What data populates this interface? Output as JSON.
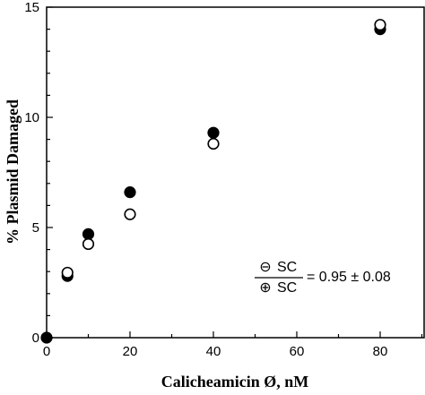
{
  "chart_data": {
    "type": "scatter",
    "xlabel": "Calicheamicin Ø, nM",
    "ylabel": "% Plasmid Damaged",
    "xlim": [
      0,
      90
    ],
    "ylim": [
      0,
      15
    ],
    "x_ticks": [
      0,
      20,
      40,
      60,
      80
    ],
    "x_tick_labels": [
      "0",
      "20",
      "40",
      "60",
      "80"
    ],
    "y_ticks": [
      0,
      5,
      10,
      15
    ],
    "y_tick_labels": [
      "0",
      "5",
      "10",
      "15"
    ],
    "grid": false,
    "series": [
      {
        "marker": "filled-circle",
        "color": "#000000",
        "x": [
          0,
          5,
          10,
          20,
          40,
          80
        ],
        "y": [
          0,
          2.8,
          4.7,
          6.6,
          9.3,
          14.0
        ]
      },
      {
        "marker": "open-circle",
        "color": "#000000",
        "x": [
          5,
          10,
          20,
          40,
          80
        ],
        "y": [
          2.95,
          4.25,
          5.6,
          8.8,
          14.2
        ]
      }
    ],
    "annotation": {
      "numerator": "SC",
      "numerator_symbol": "⊖",
      "denominator": "SC",
      "denominator_symbol": "⊕",
      "value": "= 0.95 ± 0.08"
    }
  }
}
